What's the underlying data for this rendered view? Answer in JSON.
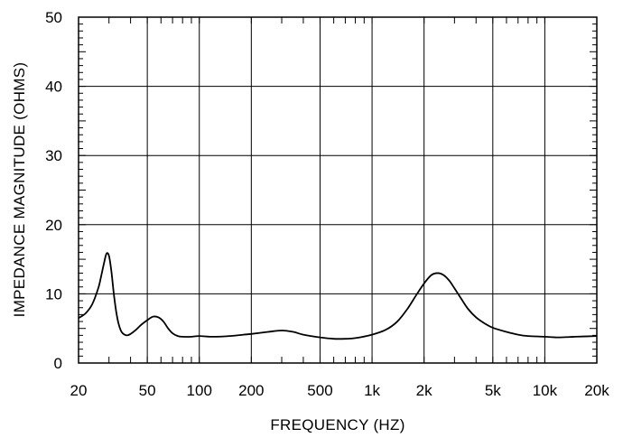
{
  "chart_data": {
    "type": "line",
    "x_scale": "log",
    "y_scale": "linear",
    "xlabel": "FREQUENCY  (HZ)",
    "ylabel": "IMPEDANCE MAGNITUDE  (OHMS)",
    "xlim": [
      20,
      20000
    ],
    "ylim": [
      0,
      50
    ],
    "grid": true,
    "x_ticks": [
      {
        "value": 20,
        "label": "20"
      },
      {
        "value": 50,
        "label": "50"
      },
      {
        "value": 100,
        "label": "100"
      },
      {
        "value": 200,
        "label": "200"
      },
      {
        "value": 500,
        "label": "500"
      },
      {
        "value": 1000,
        "label": "1k"
      },
      {
        "value": 2000,
        "label": "2k"
      },
      {
        "value": 5000,
        "label": "5k"
      },
      {
        "value": 10000,
        "label": "10k"
      },
      {
        "value": 20000,
        "label": "20k"
      }
    ],
    "y_ticks": [
      {
        "value": 0,
        "label": "0"
      },
      {
        "value": 10,
        "label": "10"
      },
      {
        "value": 20,
        "label": "20"
      },
      {
        "value": 30,
        "label": "30"
      },
      {
        "value": 40,
        "label": "40"
      },
      {
        "value": 50,
        "label": "50"
      }
    ],
    "series": [
      {
        "color": "#000000",
        "x": [
          20,
          22,
          24,
          26,
          27,
          28,
          29,
          30,
          31,
          32,
          33,
          34,
          35,
          36,
          38,
          40,
          43,
          46,
          50,
          54,
          58,
          62,
          66,
          70,
          75,
          80,
          90,
          100,
          120,
          150,
          180,
          200,
          250,
          300,
          350,
          400,
          500,
          600,
          700,
          800,
          1000,
          1200,
          1400,
          1600,
          1800,
          2000,
          2200,
          2400,
          2600,
          2800,
          3000,
          3300,
          3600,
          4000,
          4500,
          5000,
          6000,
          7000,
          8000,
          10000,
          12000,
          15000,
          20000
        ],
        "y": [
          6.5,
          7.2,
          8.5,
          10.8,
          12.5,
          14.3,
          15.8,
          15.5,
          13.2,
          10.0,
          7.5,
          5.8,
          4.8,
          4.3,
          4.0,
          4.2,
          4.8,
          5.5,
          6.2,
          6.7,
          6.6,
          6.0,
          5.0,
          4.3,
          3.9,
          3.8,
          3.8,
          3.9,
          3.8,
          3.9,
          4.1,
          4.2,
          4.5,
          4.7,
          4.5,
          4.1,
          3.7,
          3.5,
          3.5,
          3.6,
          4.1,
          4.8,
          6.0,
          7.8,
          9.8,
          11.5,
          12.7,
          13.0,
          12.7,
          11.9,
          10.8,
          9.2,
          7.8,
          6.6,
          5.7,
          5.1,
          4.5,
          4.1,
          3.9,
          3.8,
          3.7,
          3.8,
          3.9
        ]
      }
    ]
  }
}
